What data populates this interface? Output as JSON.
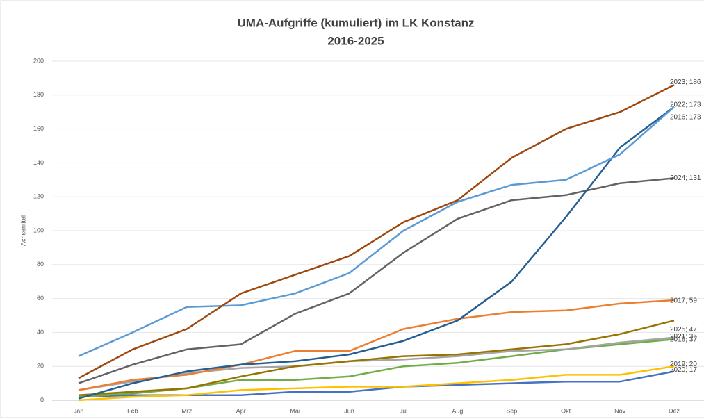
{
  "chart_data": {
    "type": "line",
    "title": "UMA-Aufgriffe (kumuliert) im LK Konstanz",
    "subtitle": "2016-2025",
    "y_label": "Achsentitel",
    "categories": [
      "Jan",
      "Feb",
      "Mrz",
      "Apr",
      "Mai",
      "Jun",
      "Jul",
      "Aug",
      "Sep",
      "Okt",
      "Nov",
      "Dez"
    ],
    "ylim": [
      0,
      200
    ],
    "yticks": [
      0,
      20,
      40,
      60,
      80,
      100,
      120,
      140,
      160,
      180,
      200
    ],
    "grid": true,
    "series": [
      {
        "name": "2020",
        "color": "#4472c4",
        "values": [
          2,
          3,
          3,
          3,
          5,
          5,
          8,
          9,
          10,
          11,
          11,
          17
        ],
        "end_label": "2020; 17"
      },
      {
        "name": "2019",
        "color": "#ffc000",
        "values": [
          0,
          2,
          3,
          6,
          7,
          8,
          8,
          10,
          12,
          15,
          15,
          20
        ],
        "end_label": "2019; 20"
      },
      {
        "name": "2021",
        "color": "#70ad47",
        "values": [
          2,
          4,
          7,
          12,
          12,
          14,
          20,
          22,
          26,
          30,
          33,
          36
        ],
        "end_label": "2021; 36"
      },
      {
        "name": "2018",
        "color": "#a5a5a5",
        "values": [
          6,
          11,
          16,
          19,
          20,
          23,
          24,
          26,
          29,
          30,
          34,
          37
        ],
        "end_label": "2018; 37"
      },
      {
        "name": "2025",
        "color": "#997300",
        "values": [
          3,
          5,
          7,
          14,
          20,
          23,
          26,
          27,
          30,
          33,
          39,
          47
        ],
        "end_label": "2025; 47"
      },
      {
        "name": "2017",
        "color": "#ed7d31",
        "values": [
          6,
          12,
          15,
          21,
          29,
          29,
          42,
          48,
          52,
          53,
          57,
          59
        ],
        "end_label": "2017; 59"
      },
      {
        "name": "2024",
        "color": "#636363",
        "values": [
          10,
          21,
          30,
          33,
          51,
          63,
          87,
          107,
          118,
          121,
          128,
          131
        ],
        "end_label": "2024; 131"
      },
      {
        "name": "2016",
        "color": "#255e91",
        "values": [
          1,
          10,
          17,
          21,
          23,
          27,
          35,
          47,
          70,
          108,
          149,
          173
        ],
        "end_label": "2016; 173"
      },
      {
        "name": "2022",
        "color": "#5b9bd5",
        "values": [
          26,
          40,
          55,
          56,
          63,
          75,
          100,
          117,
          127,
          130,
          145,
          173
        ],
        "end_label": "2022; 173"
      },
      {
        "name": "2023",
        "color": "#9e480e",
        "values": [
          13,
          30,
          42,
          63,
          74,
          85,
          105,
          118,
          143,
          160,
          170,
          186
        ],
        "end_label": "2023; 186"
      }
    ]
  }
}
